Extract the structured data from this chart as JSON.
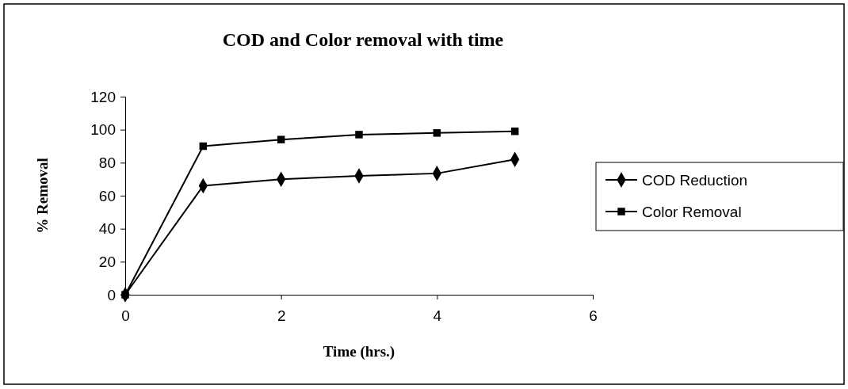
{
  "chart_data": {
    "type": "line",
    "title": "COD and Color removal with time",
    "xlabel": "Time (hrs.)",
    "ylabel": "% Removal",
    "x": [
      0,
      1,
      2,
      3,
      4,
      5
    ],
    "series": [
      {
        "name": "COD Reduction",
        "color": "#000000",
        "marker": "diamond",
        "values": [
          0,
          66,
          70,
          72,
          73.5,
          82
        ]
      },
      {
        "name": "Color Removal",
        "color": "#000000",
        "marker": "square",
        "values": [
          0,
          90,
          94,
          97,
          98,
          99
        ]
      }
    ],
    "xlim": [
      0,
      6
    ],
    "xticks": [
      0,
      2,
      4,
      6
    ],
    "ylim": [
      0,
      120
    ],
    "yticks": [
      0,
      20,
      40,
      60,
      80,
      100,
      120
    ],
    "grid": false,
    "legend": "right",
    "line_style": "solid"
  }
}
